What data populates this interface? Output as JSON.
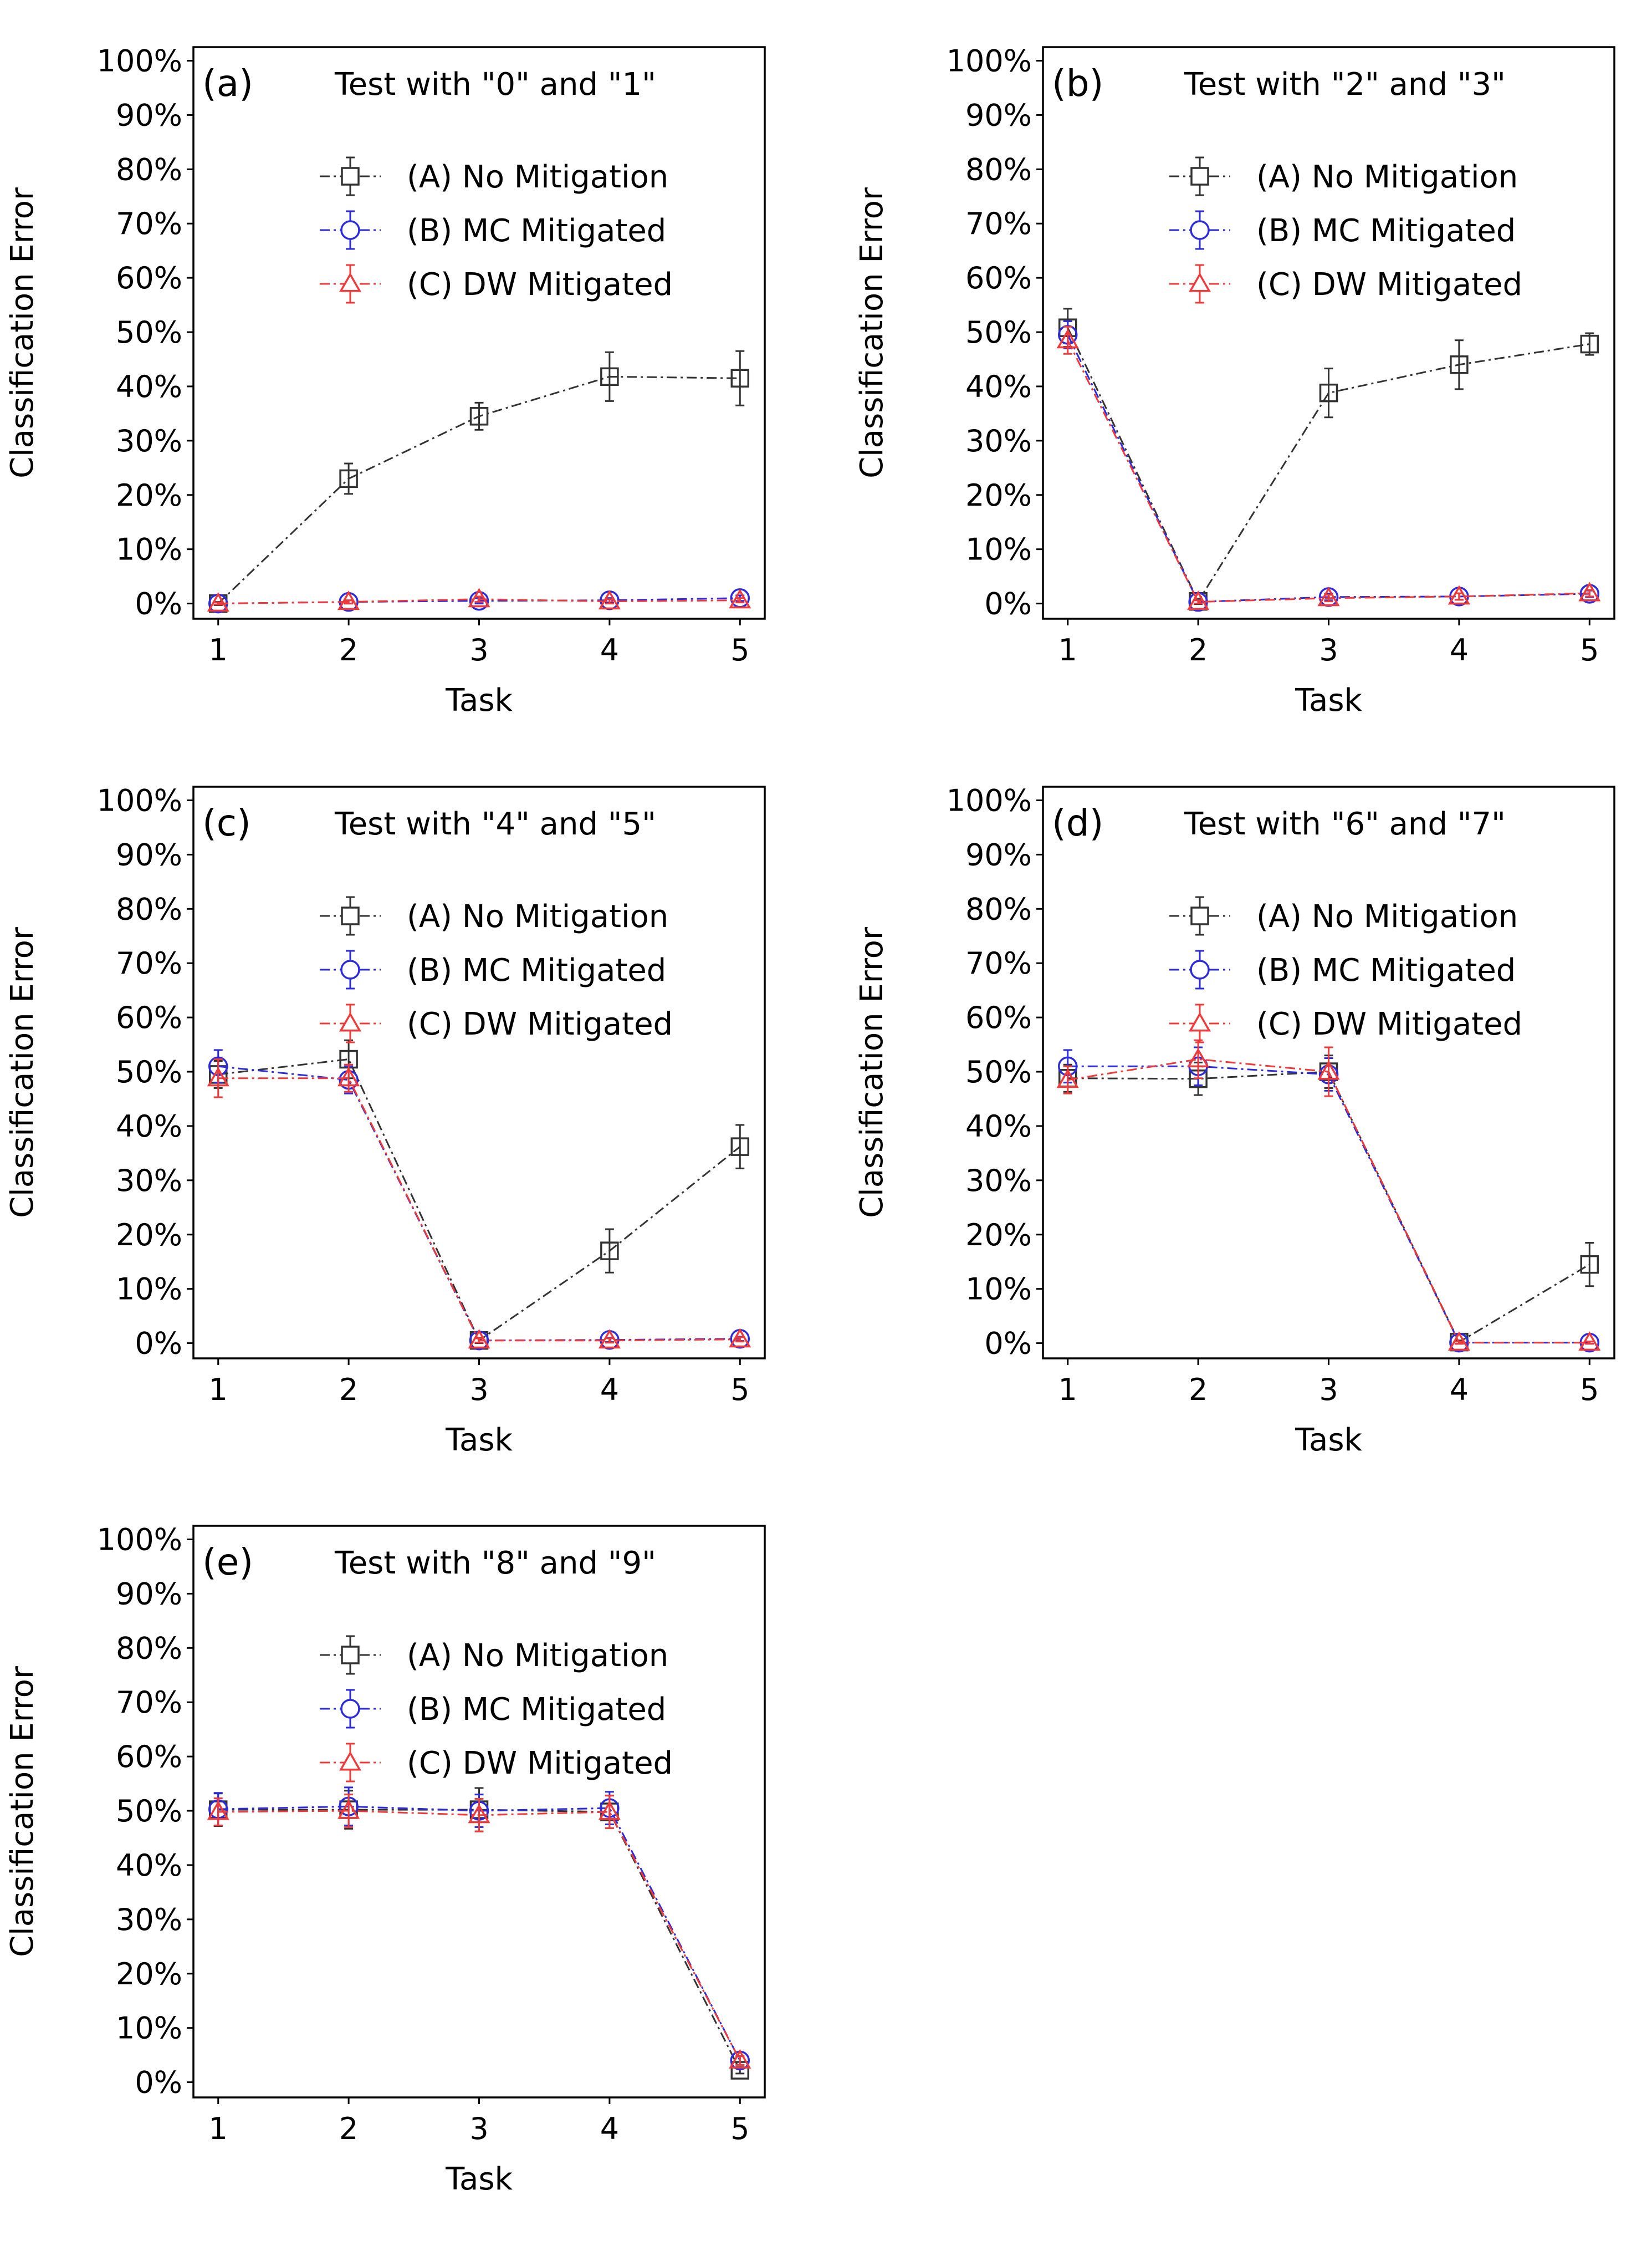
{
  "figure": {
    "colors": {
      "no_mitigation": "#333333",
      "mc_mitigated": "#2b2bdd",
      "dw_mitigated": "#f03a3a"
    }
  },
  "chart_data": [
    {
      "type": "line",
      "panel_label": "(a)",
      "title": "Test with \"0\" and \"1\"",
      "xlabel": "Task",
      "ylabel": "Classification Error",
      "x": [
        1,
        2,
        3,
        4,
        5
      ],
      "ylim": [
        0,
        100
      ],
      "yticks": [
        "0%",
        "10%",
        "20%",
        "30%",
        "40%",
        "50%",
        "60%",
        "70%",
        "80%",
        "90%",
        "100%"
      ],
      "legend_position": "upper-right",
      "series": [
        {
          "name": "(A) No Mitigation",
          "marker": "square",
          "values": [
            0,
            23,
            34.5,
            41.8,
            41.5
          ],
          "errors": [
            0.3,
            2.8,
            2.5,
            4.5,
            5.0
          ]
        },
        {
          "name": "(B) MC Mitigated",
          "marker": "circle",
          "values": [
            0,
            0.3,
            0.5,
            0.6,
            1.0
          ],
          "errors": [
            0.2,
            0.3,
            0.5,
            0.4,
            0.5
          ]
        },
        {
          "name": "(C) DW Mitigated",
          "marker": "triangle",
          "values": [
            0,
            0.3,
            0.8,
            0.4,
            0.6
          ],
          "errors": [
            0.2,
            0.3,
            0.5,
            0.4,
            0.4
          ]
        }
      ]
    },
    {
      "type": "line",
      "panel_label": "(b)",
      "title": "Test with \"2\" and \"3\"",
      "xlabel": "Task",
      "ylabel": "Classification Error",
      "x": [
        1,
        2,
        3,
        4,
        5
      ],
      "ylim": [
        0,
        100
      ],
      "yticks": [
        "0%",
        "10%",
        "20%",
        "30%",
        "40%",
        "50%",
        "60%",
        "70%",
        "80%",
        "90%",
        "100%"
      ],
      "legend_position": "upper-right",
      "series": [
        {
          "name": "(A) No Mitigation",
          "marker": "square",
          "values": [
            50.8,
            0.4,
            38.8,
            44,
            47.8
          ],
          "errors": [
            3.5,
            0.5,
            4.5,
            4.5,
            2.0
          ]
        },
        {
          "name": "(B) MC Mitigated",
          "marker": "circle",
          "values": [
            49.5,
            0.3,
            1.2,
            1.3,
            1.8
          ],
          "errors": [
            2.5,
            0.3,
            0.6,
            0.6,
            0.6
          ]
        },
        {
          "name": "(C) DW Mitigated",
          "marker": "triangle",
          "values": [
            48.5,
            0.3,
            1.0,
            1.3,
            1.9
          ],
          "errors": [
            2.5,
            0.3,
            0.6,
            0.6,
            0.6
          ]
        }
      ]
    },
    {
      "type": "line",
      "panel_label": "(c)",
      "title": "Test with \"4\" and \"5\"",
      "xlabel": "Task",
      "ylabel": "Classification Error",
      "x": [
        1,
        2,
        3,
        4,
        5
      ],
      "ylim": [
        0,
        100
      ],
      "yticks": [
        "0%",
        "10%",
        "20%",
        "30%",
        "40%",
        "50%",
        "60%",
        "70%",
        "80%",
        "90%",
        "100%"
      ],
      "legend_position": "upper-right",
      "series": [
        {
          "name": "(A) No Mitigation",
          "marker": "square",
          "values": [
            49.5,
            52.3,
            0.5,
            17,
            36.2
          ],
          "errors": [
            2.5,
            3.5,
            0.5,
            4.0,
            4.0
          ]
        },
        {
          "name": "(B) MC Mitigated",
          "marker": "circle",
          "values": [
            51,
            48.5,
            0.5,
            0.6,
            0.8
          ],
          "errors": [
            3.0,
            2.5,
            0.4,
            0.4,
            0.4
          ]
        },
        {
          "name": "(C) DW Mitigated",
          "marker": "triangle",
          "values": [
            48.8,
            48.8,
            0.5,
            0.5,
            0.7
          ],
          "errors": [
            3.5,
            2.5,
            0.4,
            0.4,
            0.4
          ]
        }
      ]
    },
    {
      "type": "line",
      "panel_label": "(d)",
      "title": "Test with \"6\" and \"7\"",
      "xlabel": "Task",
      "ylabel": "Classification Error",
      "x": [
        1,
        2,
        3,
        4,
        5
      ],
      "ylim": [
        0,
        100
      ],
      "yticks": [
        "0%",
        "10%",
        "20%",
        "30%",
        "40%",
        "50%",
        "60%",
        "70%",
        "80%",
        "90%",
        "100%"
      ],
      "legend_position": "upper-right",
      "series": [
        {
          "name": "(A) No Mitigation",
          "marker": "square",
          "values": [
            48.8,
            48.7,
            50,
            0.2,
            14.5
          ],
          "errors": [
            2.5,
            3.0,
            3.0,
            0.3,
            4.0
          ]
        },
        {
          "name": "(B) MC Mitigated",
          "marker": "circle",
          "values": [
            51,
            51,
            49.5,
            0.1,
            0.1
          ],
          "errors": [
            3.0,
            3.5,
            3.0,
            0.2,
            0.2
          ]
        },
        {
          "name": "(C) DW Mitigated",
          "marker": "triangle",
          "values": [
            48.5,
            52.3,
            50,
            0.1,
            0.1
          ],
          "errors": [
            2.5,
            3.5,
            4.5,
            0.2,
            0.2
          ]
        }
      ]
    },
    {
      "type": "line",
      "panel_label": "(e)",
      "title": "Test with \"8\" and \"9\"",
      "xlabel": "Task",
      "ylabel": "Classification Error",
      "x": [
        1,
        2,
        3,
        4,
        5
      ],
      "ylim": [
        0,
        100
      ],
      "yticks": [
        "0%",
        "10%",
        "20%",
        "30%",
        "40%",
        "50%",
        "60%",
        "70%",
        "80%",
        "90%",
        "100%"
      ],
      "legend_position": "upper-right",
      "series": [
        {
          "name": "(A) No Mitigation",
          "marker": "square",
          "values": [
            50.2,
            50.2,
            50.2,
            49.8,
            2.2
          ],
          "errors": [
            3.0,
            3.5,
            4.0,
            3.0,
            0.6
          ]
        },
        {
          "name": "(B) MC Mitigated",
          "marker": "circle",
          "values": [
            50.3,
            50.8,
            50.0,
            50.5,
            4.0
          ],
          "errors": [
            3.0,
            3.5,
            3.0,
            3.0,
            0.8
          ]
        },
        {
          "name": "(C) DW Mitigated",
          "marker": "triangle",
          "values": [
            49.8,
            50.0,
            49.2,
            49.8,
            4.0
          ],
          "errors": [
            2.5,
            3.0,
            3.0,
            3.0,
            0.8
          ]
        }
      ]
    }
  ]
}
